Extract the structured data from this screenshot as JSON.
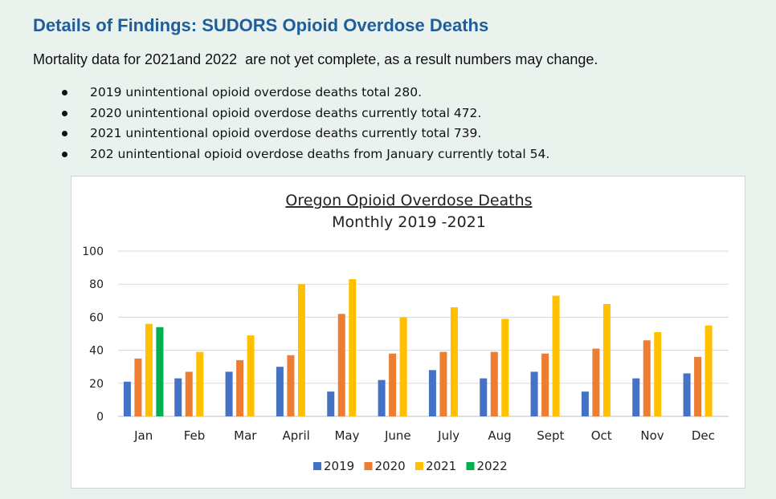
{
  "heading": "Details of Findings: SUDORS Opioid Overdose Deaths",
  "note": "Mortality data for 2021and 2022  are not yet complete, as a result numbers may change.",
  "bullets": [
    "2019 unintentional opioid overdose deaths total 280.",
    "2020 unintentional opioid overdose deaths currently total 472.",
    "2021 unintentional opioid overdose deaths currently total 739.",
    "202 unintentional opioid overdose deaths from January currently total 54."
  ],
  "chart_data": {
    "type": "bar",
    "title": "Oregon Opioid Overdose Deaths",
    "subtitle": "Monthly 2019 -2021",
    "categories": [
      "Jan",
      "Feb",
      "Mar",
      "April",
      "May",
      "June",
      "July",
      "Aug",
      "Sept",
      "Oct",
      "Nov",
      "Dec"
    ],
    "ylim": [
      0,
      100
    ],
    "yticks": [
      0,
      20,
      40,
      60,
      80,
      100
    ],
    "grid": true,
    "legend": "bottom",
    "series": [
      {
        "name": "2019",
        "color": "#4472c4",
        "values": [
          21,
          23,
          27,
          30,
          15,
          22,
          28,
          23,
          27,
          15,
          23,
          26
        ]
      },
      {
        "name": "2020",
        "color": "#ed7d31",
        "values": [
          35,
          27,
          34,
          37,
          62,
          38,
          39,
          39,
          38,
          41,
          46,
          36
        ]
      },
      {
        "name": "2021",
        "color": "#ffc000",
        "values": [
          56,
          39,
          49,
          80,
          83,
          60,
          66,
          59,
          73,
          68,
          51,
          55
        ]
      },
      {
        "name": "2022",
        "color": "#00b050",
        "values": [
          54,
          null,
          null,
          null,
          null,
          null,
          null,
          null,
          null,
          null,
          null,
          null
        ]
      }
    ]
  }
}
